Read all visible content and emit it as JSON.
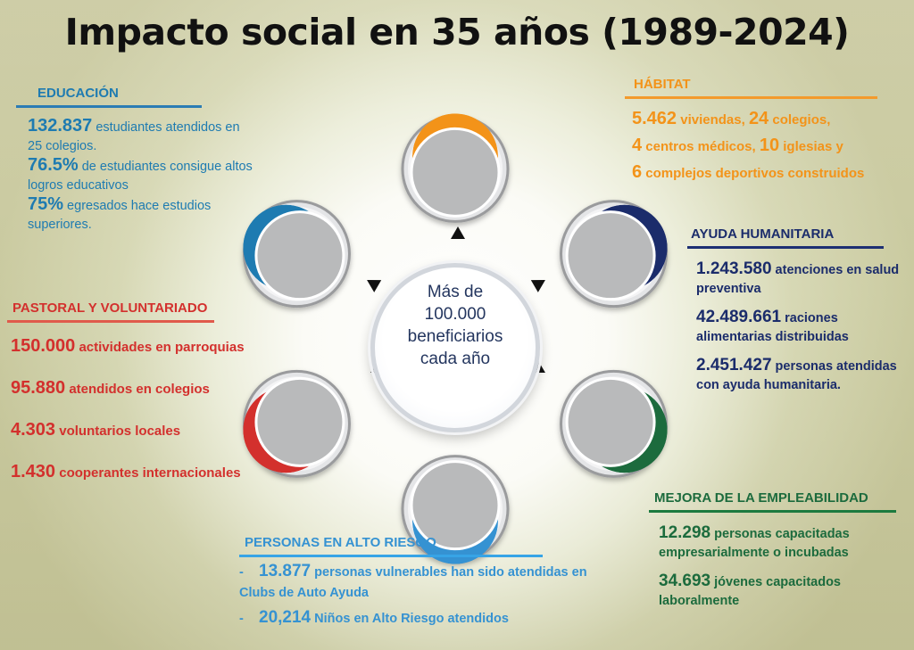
{
  "title": "Impacto social en 35 años (1989-2024)",
  "center_text": [
    "Más de",
    "100.000",
    "beneficiarios",
    "cada año"
  ],
  "colors": {
    "educacion": "#1e7bb1",
    "pastoral": "#d3302d",
    "habitat": "#f39319",
    "ayuda": "#1b2c6b",
    "empleabilidad": "#1c6b3d",
    "riesgo": "#3592d2",
    "circle_grey": "#b9babb"
  },
  "educacion": {
    "heading": "EDUCACIÓN",
    "items": [
      {
        "value": "132.837",
        "text": " estudiantes atendidos en 25 colegios."
      },
      {
        "value": "76.5%",
        "text": " de estudiantes consigue altos logros educativos"
      },
      {
        "value": "75%",
        "text": " egresados hace estudios superiores."
      }
    ]
  },
  "pastoral": {
    "heading": "PASTORAL Y VOLUNTARIADO",
    "items": [
      {
        "value": "150.000",
        "text": " actividades en parroquias"
      },
      {
        "value": "95.880",
        "text": "  atendidos en colegios"
      },
      {
        "value": "4.303",
        "text": "  voluntarios locales"
      },
      {
        "value": "1.430",
        "text": "  cooperantes internacionales"
      }
    ]
  },
  "habitat": {
    "heading": "HÁBITAT",
    "lines": [
      [
        {
          "value": "5.462"
        },
        {
          "text": " viviendas, "
        },
        {
          "value": "24"
        },
        {
          "text": " colegios,"
        }
      ],
      [
        {
          "value": "4"
        },
        {
          "text": "  centros médicos, "
        },
        {
          "value": "10"
        },
        {
          "text": " iglesias y"
        }
      ],
      [
        {
          "value": "6"
        },
        {
          "text": "  complejos deportivos construidos"
        }
      ]
    ]
  },
  "ayuda": {
    "heading": "AYUDA HUMANITARIA",
    "items": [
      {
        "value": "1.243.580",
        "text": " atenciones en salud preventiva"
      },
      {
        "value": "42.489.661",
        "text": "  raciones alimentarias distribuidas"
      },
      {
        "value": "2.451.427",
        "text": " personas atendidas con ayuda humanitaria."
      }
    ]
  },
  "empleabilidad": {
    "heading": "MEJORA DE LA EMPLEABILIDAD",
    "items": [
      {
        "value": "12.298",
        "text": "  personas capacitadas empresarialmente o incubadas"
      },
      {
        "value": "34.693",
        "text": "  jóvenes capacitados laboralmente"
      }
    ]
  },
  "riesgo": {
    "heading": "PERSONAS EN ALTO RIESGO",
    "items": [
      {
        "dash": "-",
        "value": "13.877",
        "text": " personas vulnerables han sido atendidas en Clubs de Auto Ayuda"
      },
      {
        "dash": "-",
        "value": "20,214",
        "text": " Niños en Alto Riesgo atendidos"
      }
    ]
  }
}
